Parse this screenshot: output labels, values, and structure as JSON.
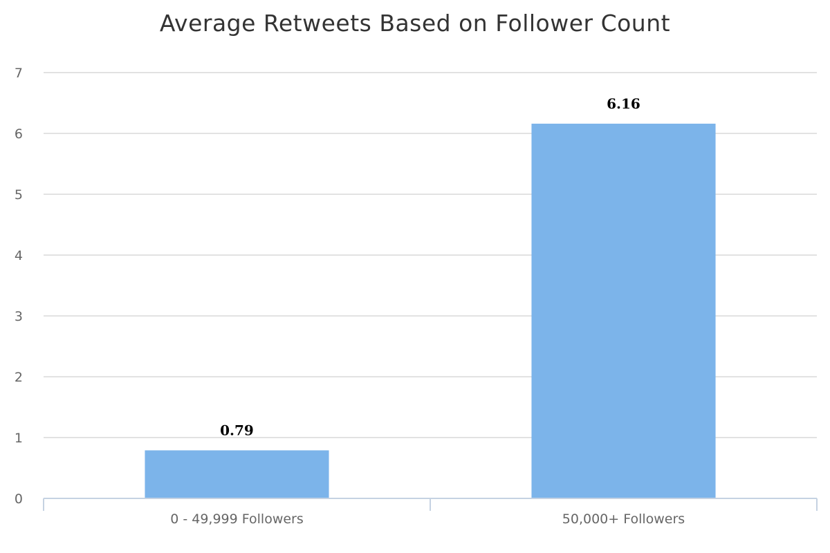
{
  "chart_data": {
    "type": "bar",
    "title": "Average Retweets Based on Follower Count",
    "xlabel": "",
    "ylabel": "",
    "categories": [
      "0 - 49,999 Followers",
      "50,000+ Followers"
    ],
    "values": [
      0.79,
      6.16
    ],
    "data_labels": [
      "0.79",
      "6.16"
    ],
    "ylim": [
      0,
      7
    ],
    "yticks": [
      0,
      1,
      2,
      3,
      4,
      5,
      6,
      7
    ],
    "grid": true,
    "legend": "none",
    "bar_color": "#7cb4ea",
    "grid_color": "#d8d8d8",
    "axis_color": "#c5d2e2"
  }
}
